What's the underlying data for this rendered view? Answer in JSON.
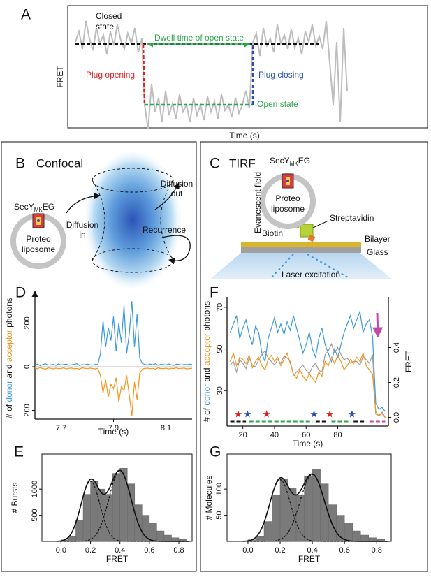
{
  "figure": {
    "panel_a": {
      "label": "A",
      "y_label": "FRET",
      "x_label": "Time (s)",
      "closed_state": [
        "Closed",
        "state"
      ],
      "dwell_time": "Dwell time of open state",
      "plug_opening": "Plug opening",
      "plug_closing": "Plug closing",
      "open_state": "Open state"
    },
    "panel_b": {
      "label": "B",
      "title": "Confocal",
      "protein": {
        "base": "SecY",
        "sub": "MK",
        "suffix": "EG"
      },
      "liposome": [
        "Proteo",
        "liposome"
      ],
      "diffusion_in": [
        "Diffusion",
        "in"
      ],
      "diffusion_out": [
        "Diffusion",
        "out"
      ],
      "recurrence": "Recurrence"
    },
    "panel_c": {
      "label": "C",
      "title": "TIRF",
      "protein": {
        "base": "SecY",
        "sub": "MK",
        "suffix": "EG"
      },
      "liposome": [
        "Proteo",
        "liposome"
      ],
      "evanescent_field": "Evanescent field",
      "streptavidin": "Streptavidin",
      "biotin": "Biotin",
      "bilayer": "Bilayer",
      "glass": "Glass",
      "laser": "Laser excitation"
    }
  },
  "chart_data": [
    {
      "type": "line",
      "label": "D",
      "x_label": "Time (s)",
      "y_label_parts": [
        "# of ",
        "donor",
        " and ",
        "acceptor",
        " photons"
      ],
      "x": [
        7.6,
        7.61,
        7.62,
        7.63,
        7.64,
        7.65,
        7.66,
        7.67,
        7.68,
        7.69,
        7.7,
        7.71,
        7.72,
        7.73,
        7.74,
        7.75,
        7.76,
        7.77,
        7.78,
        7.79,
        7.8,
        7.81,
        7.82,
        7.83,
        7.84,
        7.85,
        7.86,
        7.87,
        7.88,
        7.89,
        7.9,
        7.91,
        7.92,
        7.93,
        7.94,
        7.95,
        7.96,
        7.97,
        7.98,
        7.99,
        8.0,
        8.01,
        8.02,
        8.03,
        8.04,
        8.05,
        8.06,
        8.07,
        8.08,
        8.09,
        8.1,
        8.11,
        8.12,
        8.13,
        8.14,
        8.15,
        8.16,
        8.17,
        8.18,
        8.19,
        8.2
      ],
      "series": [
        {
          "color": "#3b9ad9",
          "values": [
            8,
            12,
            5,
            10,
            14,
            7,
            9,
            11,
            6,
            13,
            8,
            10,
            12,
            7,
            9,
            11,
            14,
            6,
            10,
            8,
            12,
            9,
            7,
            11,
            10,
            60,
            210,
            90,
            180,
            120,
            230,
            70,
            200,
            110,
            280,
            60,
            150,
            300,
            90,
            240,
            40,
            15,
            10,
            8,
            12,
            9,
            14,
            7,
            11,
            10,
            8,
            13,
            9,
            6,
            12,
            10,
            8,
            11,
            9,
            12,
            10
          ]
        },
        {
          "color": "#f7941d",
          "values": [
            -6,
            -9,
            -4,
            -8,
            -11,
            -5,
            -7,
            -10,
            -6,
            -9,
            -8,
            -5,
            -10,
            -7,
            -6,
            -9,
            -8,
            -11,
            -5,
            -7,
            -9,
            -6,
            -8,
            -10,
            -7,
            -40,
            -120,
            -60,
            -140,
            -80,
            -100,
            -50,
            -160,
            -90,
            -110,
            -40,
            -130,
            -225,
            -70,
            -150,
            -30,
            -10,
            -8,
            -6,
            -9,
            -7,
            -11,
            -5,
            -8,
            -9,
            -6,
            -10,
            -7,
            -8,
            -5,
            -9,
            -7,
            -6,
            -10,
            -8,
            -7
          ]
        }
      ],
      "xlim": [
        7.6,
        8.2
      ],
      "xticks": [
        7.7,
        7.9,
        8.1
      ],
      "ylim": [
        -240,
        320
      ],
      "yticks": [
        {
          "value": -200,
          "label": "200"
        },
        0,
        200
      ]
    },
    {
      "type": "histogram",
      "label": "E",
      "x_label": "FRET",
      "y_label": "# Bursts",
      "color": "#7a7a7a",
      "bins": [
        0,
        0.05,
        0.1,
        0.15,
        0.2,
        0.25,
        0.3,
        0.35,
        0.4,
        0.45,
        0.5,
        0.55,
        0.6,
        0.65,
        0.7,
        0.75,
        0.8,
        0.85
      ],
      "counts": [
        30,
        90,
        400,
        900,
        1150,
        1000,
        900,
        1300,
        1400,
        1100,
        700,
        500,
        350,
        200,
        120,
        70,
        40
      ],
      "fits": [
        {
          "mean": 0.2,
          "sd": 0.065,
          "amplitude": 1150
        },
        {
          "mean": 0.4,
          "sd": 0.075,
          "amplitude": 1350
        }
      ],
      "xlim": [
        -0.13,
        0.89
      ],
      "xticks": [
        {
          "value": 0,
          "label": "0.0"
        },
        0.2,
        0.4,
        0.6,
        0.8
      ],
      "ylim": [
        0,
        1670
      ],
      "yticks": [
        500,
        1000
      ]
    },
    {
      "type": "line",
      "label": "F",
      "x_label": "Time (s)",
      "y_label_parts": [
        "# of ",
        "donor",
        " and ",
        "acceptor",
        " photons"
      ],
      "y2_label": "FRET",
      "x": [
        12,
        14,
        16,
        18,
        20,
        22,
        24,
        26,
        28,
        30,
        32,
        34,
        36,
        38,
        40,
        42,
        44,
        46,
        48,
        50,
        52,
        54,
        56,
        58,
        60,
        62,
        64,
        66,
        68,
        70,
        72,
        74,
        76,
        78,
        80,
        82,
        84,
        86,
        88,
        90,
        92,
        94,
        96,
        98,
        100,
        102,
        104,
        106,
        108,
        110
      ],
      "series": [
        {
          "color": "#3b9ad9",
          "values": [
            58,
            62,
            66,
            55,
            60,
            64,
            57,
            52,
            61,
            58,
            48,
            44,
            55,
            60,
            65,
            58,
            62,
            57,
            63,
            59,
            66,
            60,
            54,
            48,
            52,
            58,
            50,
            46,
            55,
            60,
            52,
            48,
            44,
            50,
            46,
            52,
            58,
            62,
            66,
            60,
            64,
            68,
            58,
            62,
            64,
            56,
            24,
            21,
            22,
            20
          ]
        },
        {
          "color": "#9a9a9a",
          "axis": "y2",
          "values": [
            0.3,
            0.32,
            0.26,
            0.33,
            0.31,
            0.28,
            0.34,
            0.3,
            0.29,
            0.33,
            0.36,
            0.38,
            0.34,
            0.32,
            0.3,
            0.33,
            0.31,
            0.35,
            0.34,
            0.32,
            0.24,
            0.26,
            0.28,
            0.3,
            0.27,
            0.25,
            0.29,
            0.31,
            0.27,
            0.26,
            0.36,
            0.38,
            0.42,
            0.37,
            0.4,
            0.36,
            0.33,
            0.34,
            0.31,
            0.32,
            0.32,
            0.3,
            0.35,
            0.33,
            0.31,
            0.36,
            0.02,
            0.01,
            0.03,
            0.0
          ]
        },
        {
          "color": "#f7941d",
          "values": [
            44,
            48,
            42,
            46,
            45,
            43,
            47,
            41,
            44,
            46,
            42,
            40,
            45,
            47,
            44,
            46,
            42,
            45,
            48,
            43,
            38,
            36,
            40,
            37,
            35,
            38,
            36,
            34,
            39,
            37,
            44,
            42,
            46,
            43,
            47,
            44,
            40,
            42,
            45,
            43,
            46,
            44,
            48,
            42,
            40,
            38,
            20,
            18,
            19,
            17
          ]
        }
      ],
      "state_segments": [
        {
          "start": 12,
          "end": 22,
          "color": "#111111"
        },
        {
          "start": 24,
          "end": 64,
          "color": "#2aa84a"
        },
        {
          "start": 66,
          "end": 74,
          "color": "#111111"
        },
        {
          "start": 76,
          "end": 88,
          "color": "#2aa84a"
        },
        {
          "start": 90,
          "end": 98,
          "color": "#111111"
        },
        {
          "start": 100,
          "end": 110,
          "color": "#c04aa8"
        }
      ],
      "events": [
        {
          "x": 17,
          "color": "#e02020"
        },
        {
          "x": 23,
          "color": "#2a4fb0"
        },
        {
          "x": 35,
          "color": "#e02020"
        },
        {
          "x": 65,
          "color": "#2a4fb0"
        },
        {
          "x": 75,
          "color": "#e02020"
        },
        {
          "x": 89,
          "color": "#2a4fb0"
        }
      ],
      "xlim": [
        10,
        112
      ],
      "xticks": [
        20,
        40,
        60,
        80
      ],
      "ylim": [
        13,
        75
      ],
      "yticks": [
        30,
        50,
        70
      ],
      "y2lim": [
        -0.05,
        0.69
      ],
      "y2ticks": [
        {
          "value": 0,
          "label": "0.0"
        },
        0.2,
        0.4
      ]
    },
    {
      "type": "histogram",
      "label": "G",
      "x_label": "FRET",
      "y_label": "# Molecules",
      "color": "#7a7a7a",
      "bins": [
        0,
        0.05,
        0.1,
        0.15,
        0.2,
        0.25,
        0.3,
        0.35,
        0.4,
        0.45,
        0.5,
        0.55,
        0.6,
        0.65,
        0.7,
        0.75,
        0.8,
        0.85
      ],
      "counts": [
        3,
        9,
        38,
        88,
        120,
        102,
        88,
        125,
        138,
        110,
        70,
        50,
        35,
        20,
        12,
        7,
        4
      ],
      "fits": [
        {
          "mean": 0.2,
          "sd": 0.065,
          "amplitude": 118
        },
        {
          "mean": 0.4,
          "sd": 0.075,
          "amplitude": 128
        }
      ],
      "xlim": [
        -0.13,
        0.89
      ],
      "xticks": [
        {
          "value": 0,
          "label": "0.0"
        },
        0.2,
        0.4,
        0.6,
        0.8
      ],
      "ylim": [
        0,
        167
      ],
      "yticks": [
        50,
        100
      ]
    }
  ]
}
